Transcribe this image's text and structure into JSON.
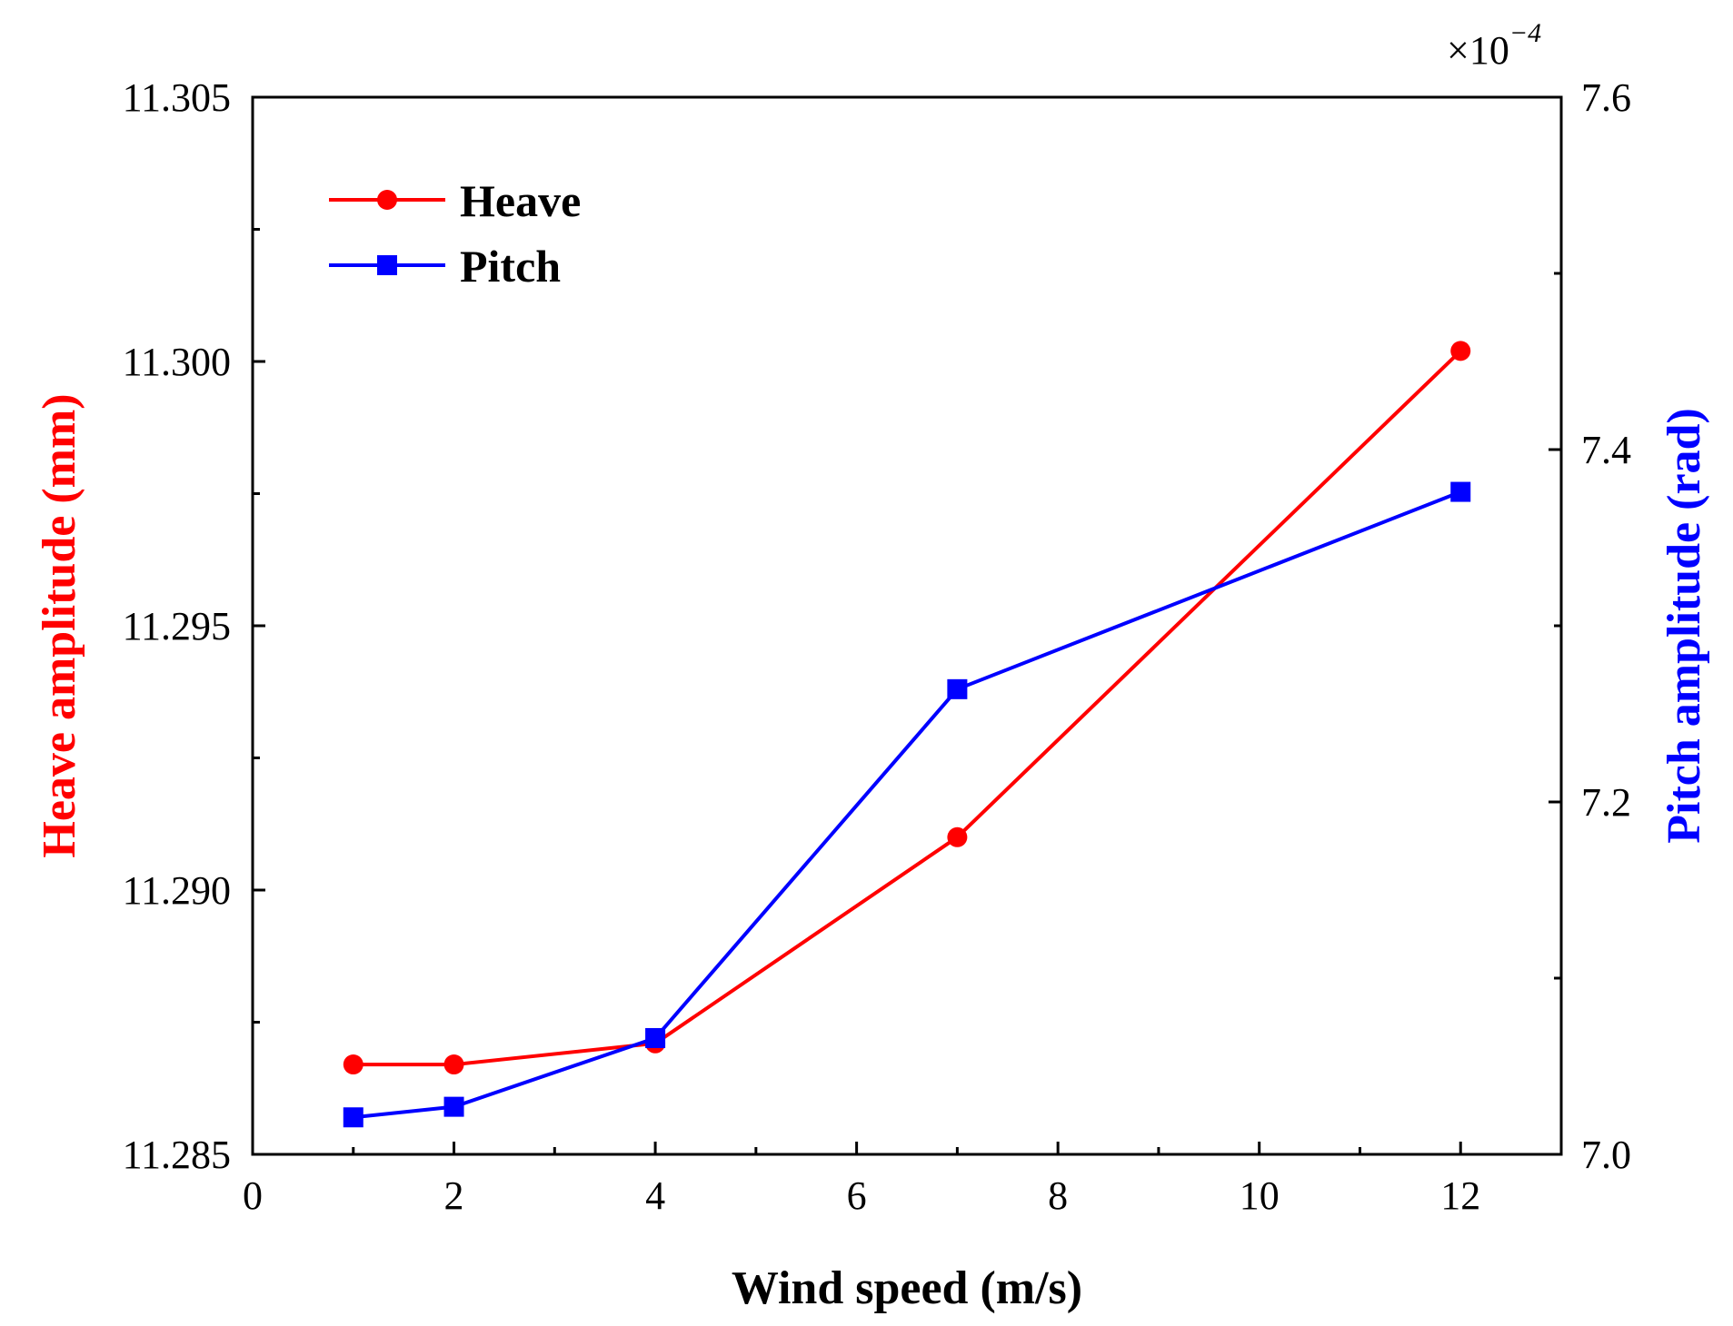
{
  "chart_data": {
    "type": "line",
    "xlabel": "Wind speed (m/s)",
    "ylabel_left": "Heave amplitude (mm)",
    "ylabel_right": "Pitch amplitude (rad)",
    "xlim": [
      0,
      13
    ],
    "ylim_left": [
      11.285,
      11.305
    ],
    "ylim_right": [
      7.0,
      7.6
    ],
    "right_axis_multiplier": "×10",
    "right_axis_exponent": "−4",
    "x_ticks": [
      {
        "value": 0,
        "label": "0"
      },
      {
        "value": 2,
        "label": "2"
      },
      {
        "value": 4,
        "label": "4"
      },
      {
        "value": 6,
        "label": "6"
      },
      {
        "value": 8,
        "label": "8"
      },
      {
        "value": 10,
        "label": "10"
      },
      {
        "value": 12,
        "label": "12"
      }
    ],
    "x_minor_ticks": [
      1,
      3,
      5,
      7,
      9,
      11,
      13
    ],
    "y_left_ticks": [
      {
        "value": 11.285,
        "label": "11.285"
      },
      {
        "value": 11.29,
        "label": "11.290"
      },
      {
        "value": 11.295,
        "label": "11.295"
      },
      {
        "value": 11.3,
        "label": "11.300"
      },
      {
        "value": 11.305,
        "label": "11.305"
      }
    ],
    "y_left_minor_ticks": [
      11.2875,
      11.2925,
      11.2975,
      11.3025
    ],
    "y_right_ticks": [
      {
        "value": 7.0,
        "label": "7.0"
      },
      {
        "value": 7.2,
        "label": "7.2"
      },
      {
        "value": 7.4,
        "label": "7.4"
      },
      {
        "value": 7.6,
        "label": "7.6"
      }
    ],
    "y_right_minor_ticks": [
      7.1,
      7.3,
      7.5
    ],
    "series": [
      {
        "name": "Heave",
        "axis": "left",
        "color": "#ff0000",
        "marker": "circle",
        "x": [
          1,
          2,
          4,
          7,
          12
        ],
        "values": [
          11.2867,
          11.2867,
          11.2871,
          11.291,
          11.3002
        ]
      },
      {
        "name": "Pitch",
        "axis": "right",
        "color": "#0000ff",
        "marker": "square",
        "x": [
          1,
          2,
          4,
          7,
          12
        ],
        "values": [
          7.021,
          7.027,
          7.066,
          7.264,
          7.376
        ]
      }
    ],
    "legend": {
      "position": "top-left",
      "entries": [
        "Heave",
        "Pitch"
      ]
    }
  }
}
